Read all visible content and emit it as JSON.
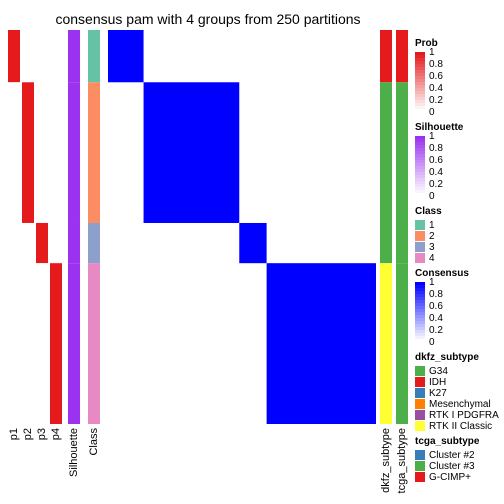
{
  "chart_data": {
    "type": "heatmap",
    "title": "consensus pam with 4 groups from 250 partitions",
    "n_samples": 98,
    "groups": [
      {
        "class": 1,
        "count": 13,
        "p1": 1.0,
        "p2": 0.0,
        "p3": 0.0,
        "p4": 0.0
      },
      {
        "class": 2,
        "count": 35,
        "p1": 0.0,
        "p2": 1.0,
        "p3": 0.0,
        "p4": 0.0
      },
      {
        "class": 3,
        "count": 10,
        "p1": 0.0,
        "p2": 0.0,
        "p3": 1.0,
        "p4": 0.0
      },
      {
        "class": 4,
        "count": 40,
        "p1": 0.0,
        "p2": 0.0,
        "p3": 0.0,
        "p4": 1.0
      }
    ],
    "column_labels": [
      "p1",
      "p2",
      "p3",
      "p4",
      "Silhouette",
      "Class",
      "dkfz_subtype",
      "tcga_subtype"
    ],
    "legends": [
      {
        "title": "Prob",
        "type": "continuous",
        "ticks": [
          "1",
          "0.8",
          "0.6",
          "0.4",
          "0.2",
          "0"
        ],
        "colors": [
          "#ffffff",
          "#e41a1c"
        ]
      },
      {
        "title": "Silhouette",
        "type": "continuous",
        "ticks": [
          "1",
          "0.8",
          "0.6",
          "0.4",
          "0.2",
          "0"
        ],
        "colors": [
          "#ffffff",
          "#9a32f0"
        ]
      },
      {
        "title": "Class",
        "type": "discrete",
        "items": [
          {
            "label": "1",
            "color": "#66c2a5"
          },
          {
            "label": "2",
            "color": "#fc8d62"
          },
          {
            "label": "3",
            "color": "#8da0cb"
          },
          {
            "label": "4",
            "color": "#e78ac3"
          }
        ]
      },
      {
        "title": "Consensus",
        "type": "continuous",
        "ticks": [
          "1",
          "0.8",
          "0.6",
          "0.4",
          "0.2",
          "0"
        ],
        "colors": [
          "#ffffff",
          "#0000ff"
        ]
      },
      {
        "title": "dkfz_subtype",
        "type": "discrete",
        "items": [
          {
            "label": "G34",
            "color": "#4daf4a"
          },
          {
            "label": "IDH",
            "color": "#e41a1c"
          },
          {
            "label": "K27",
            "color": "#377eb8"
          },
          {
            "label": "Mesenchymal",
            "color": "#ff7f00"
          },
          {
            "label": "RTK I PDGFRA",
            "color": "#984ea3"
          },
          {
            "label": "RTK II Classic",
            "color": "#ffff33"
          }
        ]
      },
      {
        "title": "tcga_subtype",
        "type": "discrete",
        "items": [
          {
            "label": "Cluster #2",
            "color": "#377eb8"
          },
          {
            "label": "Cluster #3",
            "color": "#4daf4a"
          },
          {
            "label": "G-CIMP+",
            "color": "#e41a1c"
          }
        ]
      }
    ]
  }
}
